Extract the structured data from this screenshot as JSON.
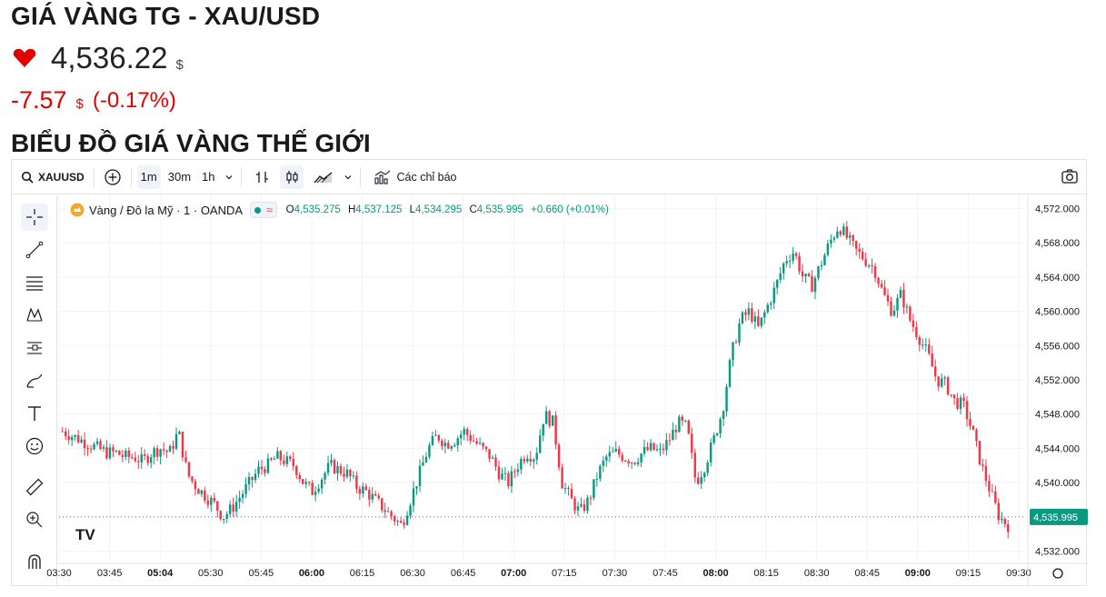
{
  "header": {
    "title": "GIÁ VÀNG TG - XAU/USD",
    "price": "4,536.22",
    "currency": "$",
    "change": "-7.57",
    "change_pct": "(-0.17%)",
    "subtitle": "BIỂU ĐỒ GIÁ VÀNG THẾ GIỚI"
  },
  "toolbar": {
    "symbol": "XAUUSD",
    "intervals": [
      "1m",
      "30m",
      "1h"
    ],
    "indicators_label": "Các chỉ báo"
  },
  "legend": {
    "name": "Vàng / Đô la Mỹ · 1 · OANDA",
    "open_label": "O",
    "open": "4,535.275",
    "high_label": "H",
    "high": "4,537.125",
    "low_label": "L",
    "low": "4,534.295",
    "close_label": "C",
    "close": "4,535.995",
    "change": "+0.660 (+0.01%)"
  },
  "colors": {
    "up": "#089981",
    "down": "#f23645",
    "accent": "#e00000"
  },
  "icons": [
    "crosshair-icon",
    "trend-line-icon",
    "fib-icon",
    "pattern-icon",
    "forecast-icon",
    "brush-icon",
    "text-icon",
    "emoji-icon",
    "ruler-icon",
    "zoom-in-icon",
    "magnet-icon"
  ],
  "chart_data": {
    "type": "candlestick",
    "y_ticks": [
      "4,572.000",
      "4,568.000",
      "4,564.000",
      "4,560.000",
      "4,556.000",
      "4,552.000",
      "4,548.000",
      "4,544.000",
      "4,540.000",
      "4,536.000",
      "4,532.000"
    ],
    "ylim": [
      4531,
      4573
    ],
    "last_price": "4,535.995",
    "last_value": 4535.995,
    "x_ticks": [
      {
        "label": "03:30",
        "bold": false
      },
      {
        "label": "03:45",
        "bold": false
      },
      {
        "label": "05:04",
        "bold": true
      },
      {
        "label": "05:30",
        "bold": false
      },
      {
        "label": "05:45",
        "bold": false
      },
      {
        "label": "06:00",
        "bold": true
      },
      {
        "label": "06:15",
        "bold": false
      },
      {
        "label": "06:30",
        "bold": false
      },
      {
        "label": "06:45",
        "bold": false
      },
      {
        "label": "07:00",
        "bold": true
      },
      {
        "label": "07:15",
        "bold": false
      },
      {
        "label": "07:30",
        "bold": false
      },
      {
        "label": "07:45",
        "bold": false
      },
      {
        "label": "08:00",
        "bold": true
      },
      {
        "label": "08:15",
        "bold": false
      },
      {
        "label": "08:30",
        "bold": false
      },
      {
        "label": "08:45",
        "bold": false
      },
      {
        "label": "09:00",
        "bold": true
      },
      {
        "label": "09:15",
        "bold": false
      },
      {
        "label": "09:30",
        "bold": false
      }
    ],
    "close_path": [
      4546,
      4545.5,
      4545,
      4544.5,
      4544,
      4543.5,
      4543.5,
      4543,
      4543,
      4542.5,
      4543.5,
      4544,
      4543.5,
      4546,
      4541,
      4539.5,
      4538.5,
      4537.5,
      4536,
      4537,
      4538.5,
      4540,
      4541.5,
      4542,
      4543,
      4542.5,
      4542,
      4540,
      4539,
      4540.5,
      4542,
      4541.5,
      4541,
      4539.5,
      4539,
      4538,
      4537,
      4536,
      4535,
      4538,
      4541,
      4544,
      4545.5,
      4544.5,
      4545,
      4546,
      4545,
      4544,
      4543,
      4541,
      4540,
      4542,
      4543.5,
      4543,
      4548,
      4547,
      4540,
      4538,
      4536.5,
      4538,
      4541,
      4543,
      4543.5,
      4543,
      4542.5,
      4543.5,
      4544,
      4543.5,
      4545,
      4547,
      4546.5,
      4540,
      4542,
      4545,
      4548.5,
      4555,
      4559,
      4560,
      4558,
      4560.5,
      4563,
      4566,
      4567,
      4564,
      4563,
      4565.5,
      4568,
      4570,
      4568.5,
      4567,
      4566,
      4565,
      4562,
      4560,
      4562,
      4559,
      4557,
      4555,
      4552,
      4551.5,
      4549.5,
      4549,
      4546,
      4542,
      4539,
      4536,
      4535
    ]
  }
}
